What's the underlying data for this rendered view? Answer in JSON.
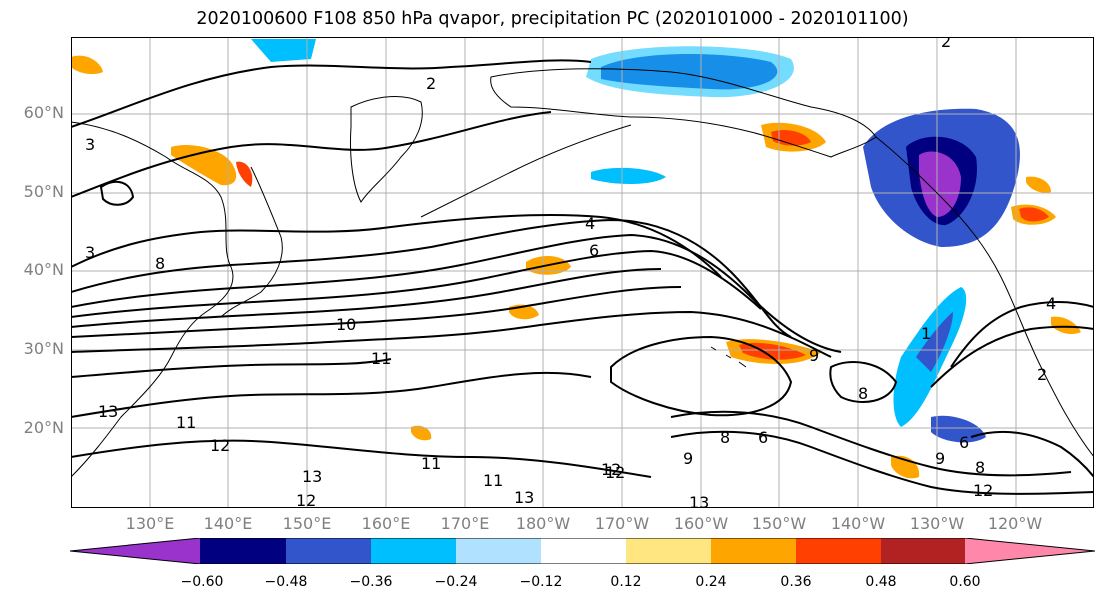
{
  "title": "2020100600 F108 850 hPa qvapor, precipitation PC (2020101000 - 2020101100)",
  "latitude_labels": [
    "60°N",
    "50°N",
    "40°N",
    "30°N",
    "20°N"
  ],
  "longitude_labels": [
    "130°E",
    "140°E",
    "150°E",
    "160°E",
    "170°E",
    "180°W",
    "170°W",
    "160°W",
    "150°W",
    "140°W",
    "130°W",
    "120°W"
  ],
  "colorbar": {
    "colors": [
      "#9933cc",
      "#000080",
      "#3355cc",
      "#00bfff",
      "#b0e2ff",
      "#ffffff",
      "#ffe680",
      "#ffa500",
      "#ff4000",
      "#b22222",
      "#ff88aa"
    ],
    "ticks": [
      "−0.60",
      "−0.48",
      "−0.36",
      "−0.24",
      "−0.12",
      "0.12",
      "0.24",
      "0.36",
      "0.48",
      "0.60"
    ]
  },
  "contour_labels": [
    "2",
    "2",
    "3",
    "3",
    "4",
    "6",
    "8",
    "10",
    "11",
    "11",
    "12",
    "12",
    "13",
    "13",
    "13",
    "11",
    "11",
    "12",
    "9",
    "6",
    "8",
    "9",
    "8",
    "6",
    "9",
    "8",
    "12",
    "12",
    "4",
    "1",
    "2",
    "13"
  ]
}
